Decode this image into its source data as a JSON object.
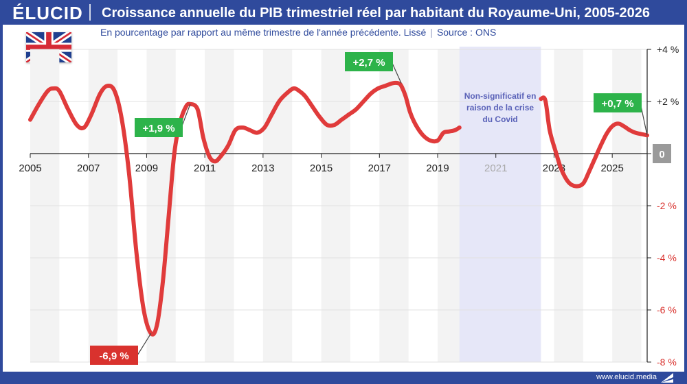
{
  "header": {
    "logo": "ÉLUCID",
    "title": "Croissance annuelle du PIB trimestriel réel par habitant du Royaume-Uni, 2005-2026"
  },
  "subtitle": {
    "text": "En pourcentage par rapport au même trimestre de l'année précédente. Lissé",
    "divider": "|",
    "source": "Source : ONS"
  },
  "footer": {
    "url": "www.elucid.media"
  },
  "colors": {
    "brand": "#2f4a9c",
    "line": "#e03b3b",
    "positive_label": "#2db34a",
    "negative_label": "#d9322e",
    "covid_band": "#e6e7f8",
    "covid_text": "#5a62b8"
  },
  "chart_data": {
    "type": "line",
    "xlabel": "",
    "ylabel": "",
    "xlim": [
      2005,
      2026.2
    ],
    "ylim": [
      -8,
      4
    ],
    "x_ticks": [
      {
        "value": 2005,
        "label": "2005"
      },
      {
        "value": 2007,
        "label": "2007"
      },
      {
        "value": 2009,
        "label": "2009"
      },
      {
        "value": 2011,
        "label": "2011"
      },
      {
        "value": 2013,
        "label": "2013"
      },
      {
        "value": 2015,
        "label": "2015"
      },
      {
        "value": 2017,
        "label": "2017"
      },
      {
        "value": 2019,
        "label": "2019"
      },
      {
        "value": 2021,
        "label": "2021"
      },
      {
        "value": 2023,
        "label": "2023"
      },
      {
        "value": 2025,
        "label": "2025"
      }
    ],
    "y_ticks": [
      {
        "value": 4,
        "label": "+4 %"
      },
      {
        "value": 2,
        "label": "+2 %"
      },
      {
        "value": 0,
        "label": "0"
      },
      {
        "value": -2,
        "label": "-2 %"
      },
      {
        "value": -4,
        "label": "-4 %"
      },
      {
        "value": -6,
        "label": "-6 %"
      },
      {
        "value": -8,
        "label": "-8 %"
      }
    ],
    "grid": true,
    "alternate_year_bands": true,
    "covid_band": {
      "x_start": 2019.75,
      "x_end": 2022.55,
      "label_lines": [
        "Non-significatif en",
        "raison de la crise",
        "du Covid"
      ]
    },
    "series": [
      {
        "segments": [
          {
            "x": [
              2005.0,
              2005.3,
              2005.6,
              2005.8,
              2006.0,
              2006.3,
              2006.6,
              2006.85,
              2007.1,
              2007.4,
              2007.65,
              2007.9,
              2008.15,
              2008.4,
              2008.65,
              2008.9,
              2009.15,
              2009.35,
              2009.55,
              2009.75,
              2009.95,
              2010.15,
              2010.35,
              2010.5,
              2010.75,
              2010.95,
              2011.15,
              2011.35,
              2011.55,
              2011.8,
              2012.05,
              2012.3,
              2012.55,
              2012.8,
              2013.05,
              2013.3,
              2013.55,
              2013.8,
              2014.05,
              2014.25,
              2014.45,
              2014.7,
              2014.95,
              2015.2,
              2015.45,
              2015.7,
              2015.95,
              2016.2,
              2016.45,
              2016.7,
              2016.95,
              2017.2,
              2017.45,
              2017.65,
              2017.75,
              2017.9,
              2018.05,
              2018.25,
              2018.5,
              2018.75,
              2019.0,
              2019.2,
              2019.4,
              2019.6,
              2019.75
            ],
            "y": [
              1.3,
              1.9,
              2.4,
              2.5,
              2.4,
              1.7,
              1.1,
              1.0,
              1.5,
              2.3,
              2.6,
              2.4,
              1.3,
              -0.8,
              -3.8,
              -6.0,
              -6.9,
              -6.6,
              -5.0,
              -2.5,
              0.0,
              1.2,
              1.8,
              1.9,
              1.7,
              0.6,
              -0.1,
              -0.3,
              -0.1,
              0.3,
              0.9,
              1.0,
              0.9,
              0.8,
              1.0,
              1.5,
              2.0,
              2.3,
              2.5,
              2.4,
              2.2,
              1.8,
              1.4,
              1.1,
              1.1,
              1.3,
              1.5,
              1.7,
              2.0,
              2.3,
              2.5,
              2.6,
              2.7,
              2.7,
              2.6,
              2.2,
              1.6,
              1.1,
              0.7,
              0.5,
              0.5,
              0.8,
              0.85,
              0.9,
              1.0
            ]
          },
          {
            "x": [
              2022.55,
              2022.7,
              2022.85,
              2023.05,
              2023.25,
              2023.5,
              2023.75,
              2024.0,
              2024.2,
              2024.4,
              2024.6,
              2024.8,
              2025.0,
              2025.2,
              2025.4,
              2025.6,
              2025.8,
              2026.0,
              2026.2
            ],
            "y": [
              2.1,
              2.05,
              0.9,
              0.1,
              -0.6,
              -1.1,
              -1.25,
              -1.15,
              -0.7,
              -0.2,
              0.3,
              0.75,
              1.05,
              1.15,
              1.05,
              0.9,
              0.8,
              0.75,
              0.7
            ]
          }
        ]
      }
    ],
    "annotations": [
      {
        "text": "+1,9 %",
        "x": 2010.5,
        "y": 1.9,
        "kind": "positive"
      },
      {
        "text": "-6,9 %",
        "x": 2009.15,
        "y": -6.9,
        "kind": "negative"
      },
      {
        "text": "+2,7 %",
        "x": 2017.75,
        "y": 2.7,
        "kind": "positive"
      },
      {
        "text": "+0,7 %",
        "x": 2026.2,
        "y": 0.7,
        "kind": "positive"
      },
      {
        "text": "0",
        "x": 2026.2,
        "y": 0,
        "kind": "zero"
      }
    ]
  }
}
